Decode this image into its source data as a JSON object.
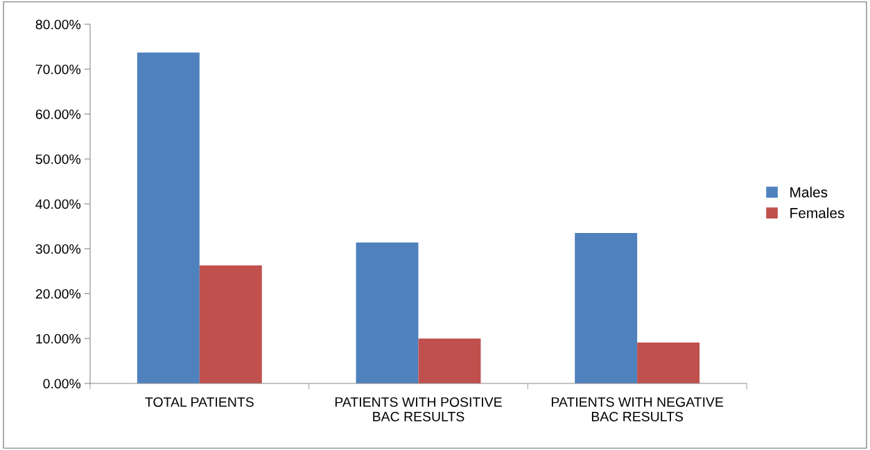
{
  "chart_data": {
    "type": "bar",
    "categories": [
      "TOTAL PATIENTS",
      "PATIENTS WITH POSITIVE\nBAC RESULTS",
      "PATIENTS WITH NEGATIVE\nBAC RESULTS"
    ],
    "series": [
      {
        "name": "Males",
        "color": "#4f81bd",
        "values": [
          73.7,
          31.4,
          33.5
        ]
      },
      {
        "name": "Females",
        "color": "#c0504d",
        "values": [
          26.3,
          10.0,
          9.1
        ]
      }
    ],
    "ylim": [
      0,
      80
    ],
    "yticks": [
      {
        "value": 0,
        "label": "0.00%"
      },
      {
        "value": 10,
        "label": "10.00%"
      },
      {
        "value": 20,
        "label": "20.00%"
      },
      {
        "value": 30,
        "label": "30.00%"
      },
      {
        "value": 40,
        "label": "40.00%"
      },
      {
        "value": 50,
        "label": "50.00%"
      },
      {
        "value": 60,
        "label": "60.00%"
      },
      {
        "value": 70,
        "label": "70.00%"
      },
      {
        "value": 80,
        "label": "80.00%"
      }
    ],
    "grid": false,
    "legend": "right"
  }
}
